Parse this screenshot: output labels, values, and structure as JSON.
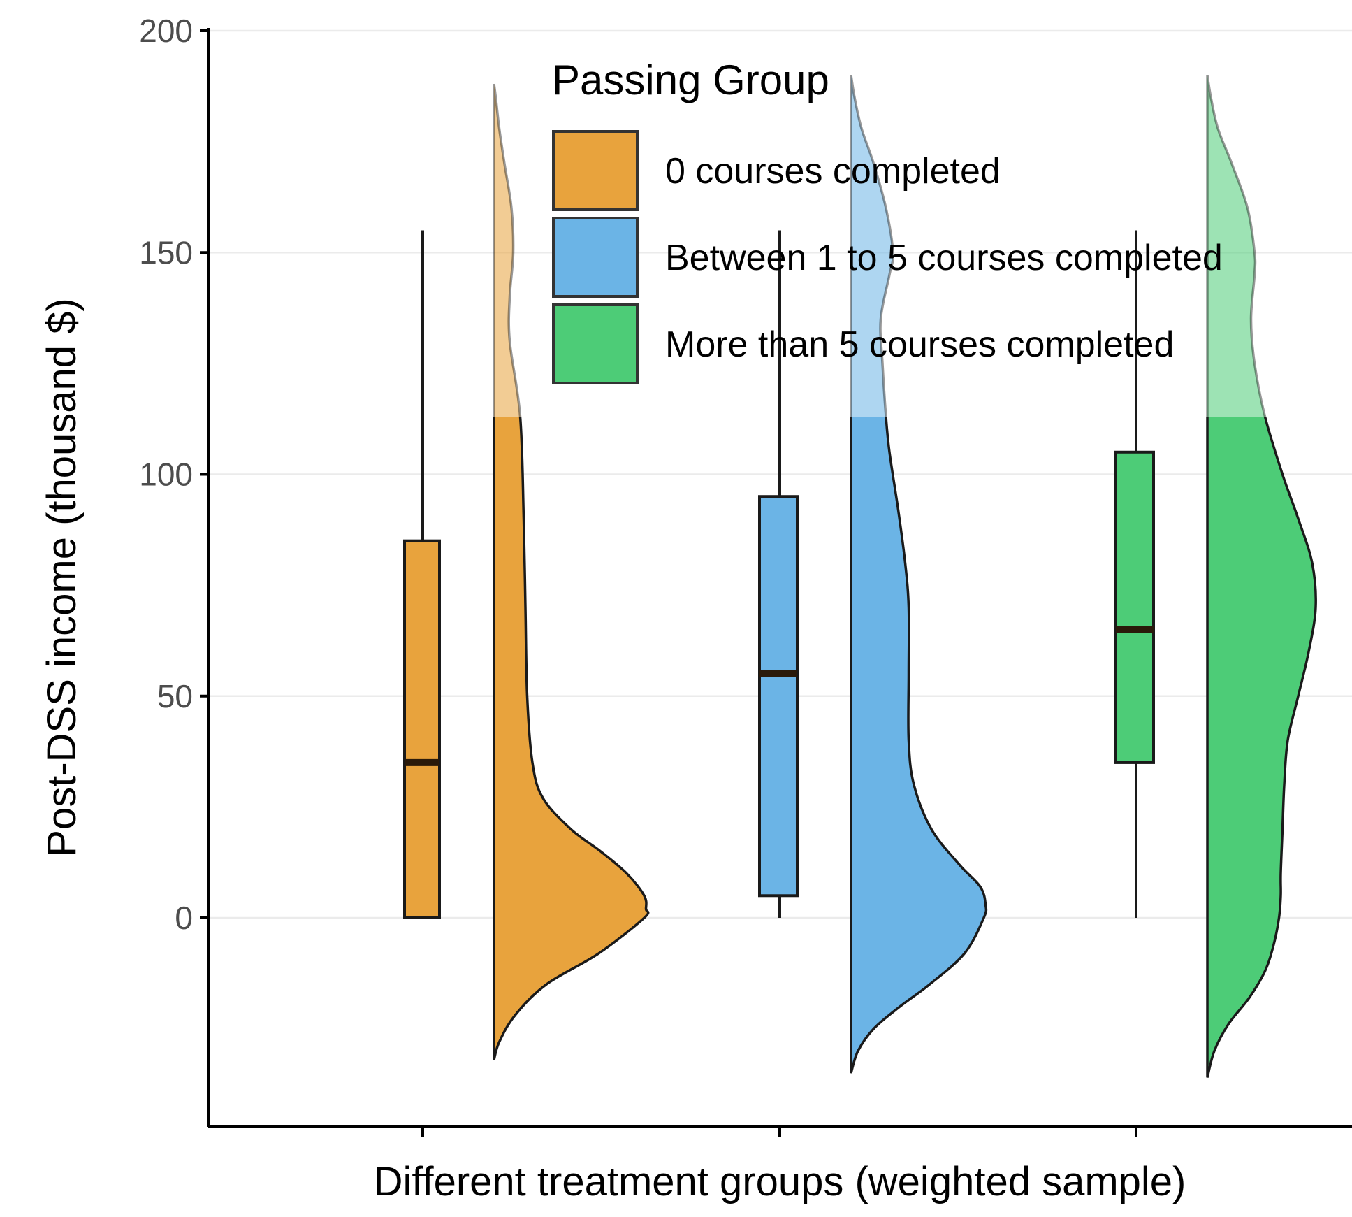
{
  "chart_data": {
    "type": "raincloud",
    "xlabel": "Different treatment groups (weighted sample)",
    "ylabel": "Post-DSS income (thousand $)",
    "ylim": [
      -47,
      200
    ],
    "yticks": [
      0,
      50,
      100,
      150,
      200
    ],
    "grid": "horizontal major lines",
    "legend": {
      "title": "Passing Group",
      "placement": "top-center inside plot"
    },
    "series": [
      {
        "name": "0 courses completed",
        "color": "#E8A33D",
        "box": {
          "min": 0,
          "q1": 0,
          "median": 35,
          "q3": 85,
          "max": 155
        },
        "density_y": [
          -32,
          -28,
          -22,
          -15,
          -8,
          0,
          2,
          5,
          10,
          15,
          20,
          27,
          35,
          50,
          70,
          90,
          113,
          130,
          140,
          150,
          160,
          170,
          178,
          185,
          188
        ],
        "density_w": [
          0,
          0.03,
          0.12,
          0.3,
          0.6,
          0.86,
          0.87,
          0.86,
          0.76,
          0.61,
          0.44,
          0.28,
          0.22,
          0.19,
          0.18,
          0.17,
          0.15,
          0.09,
          0.09,
          0.11,
          0.1,
          0.06,
          0.03,
          0.01,
          0
        ],
        "cutoff": 113
      },
      {
        "name": "Between 1 to 5 courses completed",
        "color": "#6BB4E6",
        "box": {
          "min": 0,
          "q1": 5,
          "median": 55,
          "q3": 95,
          "max": 155
        },
        "density_y": [
          -35,
          -30,
          -25,
          -20,
          -15,
          -8,
          0,
          3,
          7,
          12,
          20,
          30,
          40,
          55,
          70,
          80,
          92,
          105,
          113,
          125,
          135,
          145,
          150,
          160,
          170,
          178,
          185,
          190
        ],
        "density_w": [
          0,
          0.04,
          0.13,
          0.28,
          0.45,
          0.65,
          0.76,
          0.77,
          0.74,
          0.62,
          0.46,
          0.36,
          0.33,
          0.33,
          0.33,
          0.31,
          0.27,
          0.22,
          0.2,
          0.18,
          0.17,
          0.22,
          0.24,
          0.2,
          0.13,
          0.06,
          0.02,
          0
        ],
        "cutoff": 113
      },
      {
        "name": "More than 5 courses completed",
        "color": "#4DCC77",
        "box": {
          "min": 0,
          "q1": 35,
          "median": 65,
          "q3": 105,
          "max": 155
        },
        "density_y": [
          -36,
          -30,
          -24,
          -18,
          -12,
          -6,
          0,
          5,
          10,
          20,
          30,
          40,
          50,
          60,
          70,
          80,
          90,
          100,
          113,
          125,
          135,
          145,
          150,
          160,
          170,
          178,
          185,
          190
        ],
        "density_w": [
          0,
          0.04,
          0.12,
          0.24,
          0.33,
          0.38,
          0.41,
          0.42,
          0.42,
          0.43,
          0.44,
          0.46,
          0.52,
          0.58,
          0.62,
          0.6,
          0.52,
          0.43,
          0.33,
          0.27,
          0.25,
          0.27,
          0.27,
          0.23,
          0.14,
          0.06,
          0.02,
          0
        ],
        "cutoff": 113
      }
    ]
  }
}
